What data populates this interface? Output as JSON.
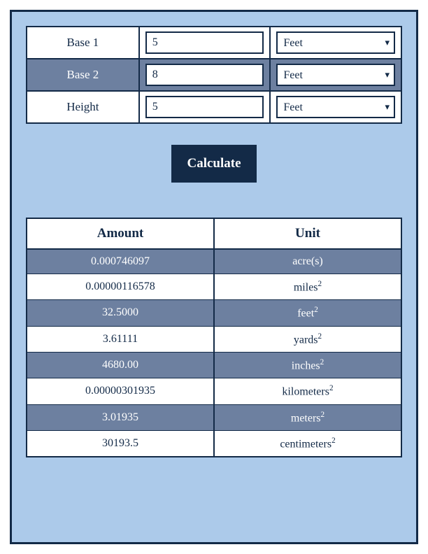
{
  "colors": {
    "panel_bg": "#accaea",
    "dark": "#132a47",
    "slate": "#6d80a0",
    "white": "#ffffff"
  },
  "inputs": {
    "rows": [
      {
        "label": "Base 1",
        "value": "5",
        "unit": "Feet",
        "shade": "white"
      },
      {
        "label": "Base 2",
        "value": "8",
        "unit": "Feet",
        "shade": "slate"
      },
      {
        "label": "Height",
        "value": "5",
        "unit": "Feet",
        "shade": "white"
      }
    ]
  },
  "calculate": {
    "label": "Calculate"
  },
  "results": {
    "columns": [
      "Amount",
      "Unit"
    ],
    "rows": [
      {
        "amount": "0.000746097",
        "unit": "acre(s)",
        "sup": "",
        "shade": "slate"
      },
      {
        "amount": "0.00000116578",
        "unit": "miles",
        "sup": "2",
        "shade": "white"
      },
      {
        "amount": "32.5000",
        "unit": "feet",
        "sup": "2",
        "shade": "slate"
      },
      {
        "amount": "3.61111",
        "unit": "yards",
        "sup": "2",
        "shade": "white"
      },
      {
        "amount": "4680.00",
        "unit": "inches",
        "sup": "2",
        "shade": "slate"
      },
      {
        "amount": "0.00000301935",
        "unit": "kilometers",
        "sup": "2",
        "shade": "white"
      },
      {
        "amount": "3.01935",
        "unit": "meters",
        "sup": "2",
        "shade": "slate"
      },
      {
        "amount": "30193.5",
        "unit": "centimeters",
        "sup": "2",
        "shade": "white"
      }
    ]
  }
}
